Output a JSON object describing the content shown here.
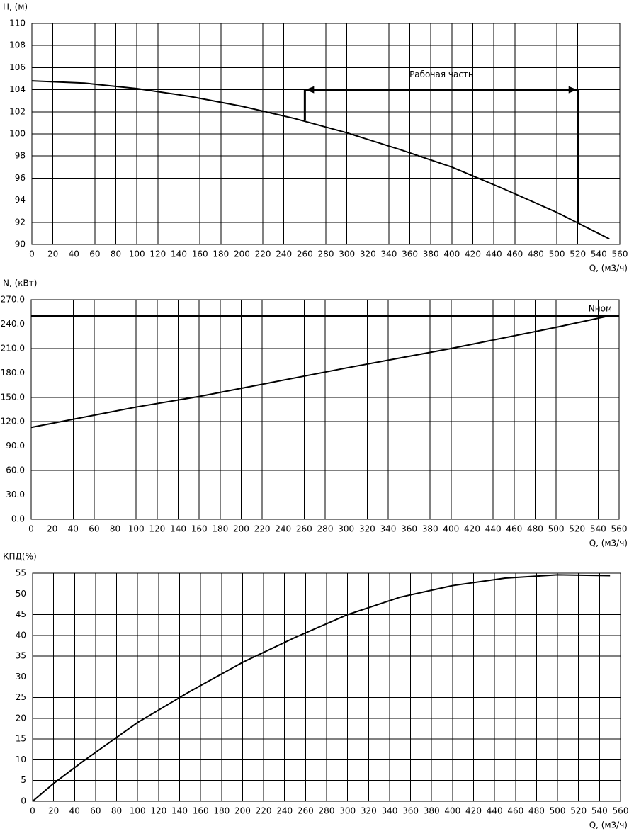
{
  "chart_data": [
    {
      "type": "line",
      "y_label": "H, (м)",
      "x_label": "Q, (м3/ч)",
      "x": [
        0,
        50,
        100,
        150,
        200,
        250,
        300,
        350,
        400,
        450,
        500,
        550
      ],
      "values": [
        104.8,
        104.6,
        104.1,
        103.4,
        102.5,
        101.4,
        100.1,
        98.6,
        97.0,
        95.0,
        92.9,
        90.5
      ],
      "color": "#000000",
      "xlim": [
        0,
        560
      ],
      "xticks": [
        0,
        20,
        40,
        60,
        80,
        100,
        120,
        140,
        160,
        180,
        200,
        220,
        240,
        260,
        280,
        300,
        320,
        340,
        360,
        380,
        400,
        420,
        440,
        460,
        480,
        500,
        520,
        540,
        560
      ],
      "ylim": [
        90,
        110
      ],
      "yticks": [
        90,
        92,
        94,
        96,
        98,
        100,
        102,
        104,
        106,
        108,
        110
      ],
      "grid": true,
      "bracket": {
        "label": "Рабочая часть",
        "x": [
          260,
          260,
          520,
          520
        ],
        "y": [
          101.2,
          104,
          104,
          92
        ]
      }
    },
    {
      "type": "line",
      "y_label": "N, (кВт)",
      "x_label": "Q, (м3/ч)",
      "x": [
        0,
        100,
        160,
        200,
        300,
        400,
        500,
        550
      ],
      "values": [
        113,
        138,
        151,
        161,
        186,
        210,
        236,
        250
      ],
      "color": "#000000",
      "xlim": [
        0,
        560
      ],
      "xticks": [
        0,
        20,
        40,
        60,
        80,
        100,
        120,
        140,
        160,
        180,
        200,
        220,
        240,
        260,
        280,
        300,
        320,
        340,
        360,
        380,
        400,
        420,
        440,
        460,
        480,
        500,
        520,
        540,
        560
      ],
      "ylim": [
        0,
        270
      ],
      "yticks": [
        {
          "value": 0,
          "label": "0.0"
        },
        {
          "value": 30,
          "label": "30.0"
        },
        {
          "value": 60,
          "label": "60.0"
        },
        {
          "value": 90,
          "label": "90.0"
        },
        {
          "value": 120,
          "label": "120.0"
        },
        {
          "value": 150,
          "label": "150.0"
        },
        {
          "value": 180,
          "label": "180.0"
        },
        {
          "value": 210,
          "label": "210.0"
        },
        {
          "value": 240,
          "label": "240.0"
        },
        {
          "value": 270,
          "label": "270.0"
        }
      ],
      "grid": true,
      "reference_line": {
        "y": 250,
        "label": "Nном"
      }
    },
    {
      "type": "line",
      "y_label": "КПД(%)",
      "x_label": "Q, (м3/ч)",
      "x": [
        0,
        20,
        50,
        100,
        150,
        200,
        250,
        300,
        350,
        400,
        450,
        500,
        550
      ],
      "values": [
        0,
        4.3,
        10,
        19,
        26.5,
        33.5,
        39.5,
        45,
        49.2,
        52,
        53.8,
        54.6,
        54.4
      ],
      "color": "#000000",
      "xlim": [
        0,
        560
      ],
      "xticks": [
        0,
        20,
        40,
        60,
        80,
        100,
        120,
        140,
        160,
        180,
        200,
        220,
        240,
        260,
        280,
        300,
        320,
        340,
        360,
        380,
        400,
        420,
        440,
        460,
        480,
        500,
        520,
        540,
        560
      ],
      "ylim": [
        0,
        55
      ],
      "yticks": [
        0,
        5,
        10,
        15,
        20,
        25,
        30,
        35,
        40,
        45,
        50,
        55
      ],
      "grid": true
    }
  ]
}
